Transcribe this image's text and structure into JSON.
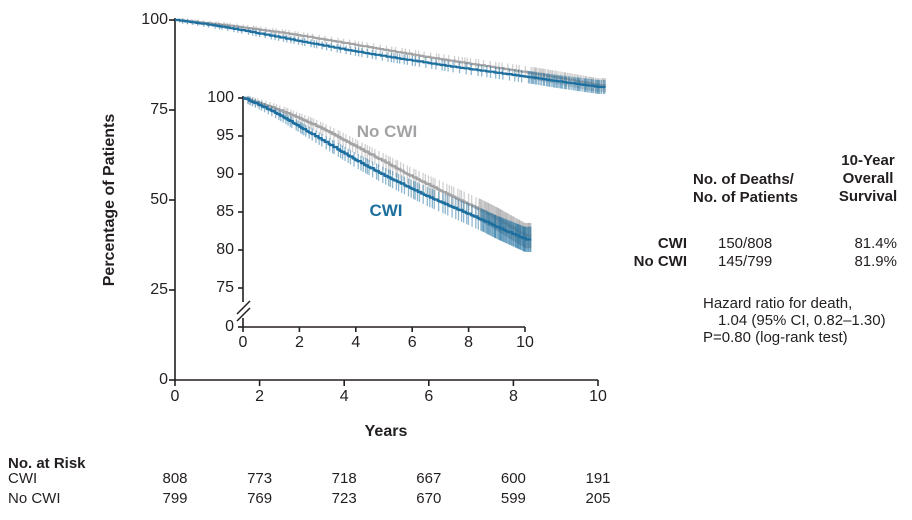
{
  "chart_data": {
    "type": "line",
    "subtype": "kaplan-meier-survival",
    "title": "",
    "xlabel": "Years",
    "ylabel": "Percentage of Patients",
    "x": [
      0,
      0.5,
      1,
      1.5,
      2,
      2.5,
      3,
      3.5,
      4,
      4.5,
      5,
      5.5,
      6,
      6.5,
      7,
      7.5,
      8,
      8.5,
      9,
      9.5,
      10
    ],
    "series": [
      {
        "name": "No CWI",
        "color": "#a3a3a5",
        "values": [
          100,
          99.4,
          98.8,
          98.1,
          97.3,
          96.5,
          95.6,
          94.6,
          93.6,
          92.6,
          91.6,
          90.6,
          89.6,
          88.7,
          87.8,
          86.9,
          86.0,
          85.1,
          84.1,
          83.0,
          81.9
        ]
      },
      {
        "name": "CWI",
        "color": "#1d6f9f",
        "values": [
          100,
          99.2,
          98.3,
          97.3,
          96.2,
          95.1,
          94.0,
          92.9,
          91.8,
          90.8,
          89.8,
          88.9,
          88.0,
          87.1,
          86.3,
          85.5,
          84.7,
          83.9,
          83.0,
          82.2,
          81.4
        ]
      }
    ],
    "main_axis": {
      "x_ticks": [
        0,
        2,
        4,
        6,
        8,
        10
      ],
      "y_ticks": [
        0,
        25,
        50,
        75,
        100
      ],
      "xlim": [
        0,
        10
      ],
      "ylim": [
        0,
        100
      ],
      "grid": false
    },
    "inset_axis": {
      "x_ticks": [
        0,
        2,
        4,
        6,
        8,
        10
      ],
      "y_ticks": [
        100,
        95,
        90,
        85,
        80,
        75,
        0
      ],
      "y_axis_break": true,
      "ylim_zoom": [
        75,
        100
      ]
    },
    "legend_position": "labels-on-curves",
    "censor_marks": true
  },
  "colors": {
    "cwi_blue": "#1d6f9f",
    "no_cwi_gray": "#a3a3a5",
    "text": "#231f20"
  },
  "summary_table": {
    "col1_header": [
      "No. of Deaths/",
      "No. of Patients"
    ],
    "col2_header": [
      "10-Year",
      "Overall",
      "Survival"
    ],
    "rows": [
      {
        "label": "CWI",
        "deaths": "150/808",
        "survival": "81.4%"
      },
      {
        "label": "No CWI",
        "deaths": "145/799",
        "survival": "81.9%"
      }
    ],
    "hazard": [
      "Hazard ratio for death,",
      "1.04 (95% CI, 0.82–1.30)",
      "P=0.80 (log-rank test)"
    ]
  },
  "risk_table": {
    "title": "No. at Risk",
    "rows": [
      {
        "label": "CWI",
        "values": [
          "808",
          "773",
          "718",
          "667",
          "600",
          "191"
        ]
      },
      {
        "label": "No CWI",
        "values": [
          "799",
          "769",
          "723",
          "670",
          "599",
          "205"
        ]
      }
    ]
  }
}
